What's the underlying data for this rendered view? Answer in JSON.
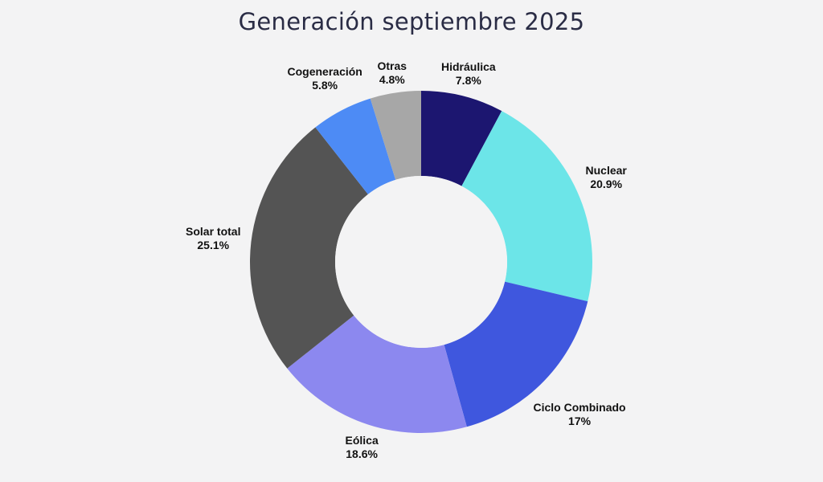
{
  "chart_data": {
    "type": "pie",
    "variant": "donut",
    "title": "Generación septiembre 2025",
    "slices": [
      {
        "name": "Hidráulica",
        "value": 7.8,
        "value_label": "7.8%",
        "color": "#1c1670"
      },
      {
        "name": "Nuclear",
        "value": 20.9,
        "value_label": "20.9%",
        "color": "#6ce5e8"
      },
      {
        "name": "Ciclo Combinado",
        "value": 17,
        "value_label": "17%",
        "color": "#3f57de"
      },
      {
        "name": "Eólica",
        "value": 18.6,
        "value_label": "18.6%",
        "color": "#8c88ef"
      },
      {
        "name": "Solar total",
        "value": 25.1,
        "value_label": "25.1%",
        "color": "#545454"
      },
      {
        "name": "Cogeneración",
        "value": 5.8,
        "value_label": "5.8%",
        "color": "#4d8bf5"
      },
      {
        "name": "Otras",
        "value": 4.8,
        "value_label": "4.8%",
        "color": "#a7a7a7"
      }
    ]
  }
}
